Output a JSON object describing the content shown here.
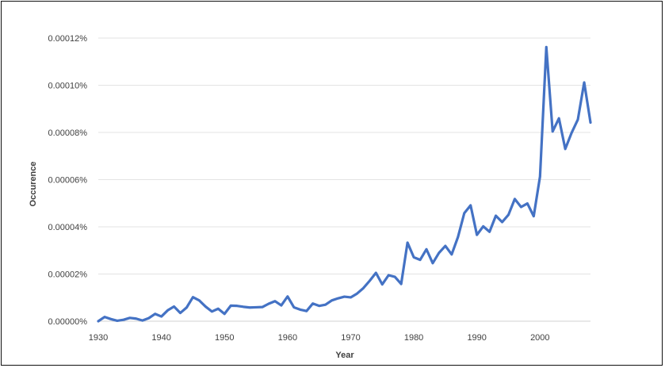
{
  "chart_data": {
    "type": "line",
    "xlabel": "Year",
    "ylabel": "Occurence",
    "xlim": [
      1930,
      2008
    ],
    "ylim": [
      0,
      0.00012
    ],
    "x_ticks": [
      1930,
      1940,
      1950,
      1960,
      1970,
      1980,
      1990,
      2000
    ],
    "y_ticks": [
      0,
      2e-05,
      4e-05,
      6e-05,
      8e-05,
      0.0001,
      0.00012
    ],
    "y_tick_labels": [
      "0.00000%",
      "0.00002%",
      "0.00004%",
      "0.00006%",
      "0.00008%",
      "0.00010%",
      "0.00012%"
    ],
    "grid": "horizontal",
    "legend": "none",
    "series_color": "#4472C4",
    "x": [
      1930,
      1931,
      1932,
      1933,
      1934,
      1935,
      1936,
      1937,
      1938,
      1939,
      1940,
      1941,
      1942,
      1943,
      1944,
      1945,
      1946,
      1947,
      1948,
      1949,
      1950,
      1951,
      1952,
      1953,
      1954,
      1955,
      1956,
      1957,
      1958,
      1959,
      1960,
      1961,
      1962,
      1963,
      1964,
      1965,
      1966,
      1967,
      1968,
      1969,
      1970,
      1971,
      1972,
      1973,
      1974,
      1975,
      1976,
      1977,
      1978,
      1979,
      1980,
      1981,
      1982,
      1983,
      1984,
      1985,
      1986,
      1987,
      1988,
      1989,
      1990,
      1991,
      1992,
      1993,
      1994,
      1995,
      1996,
      1997,
      1998,
      1999,
      2000,
      2001,
      2002,
      2003,
      2004,
      2005,
      2006,
      2007,
      2008
    ],
    "values": [
      0.0,
      1.8e-06,
      9e-07,
      2e-07,
      6e-07,
      1.4e-06,
      1.1e-06,
      3e-07,
      1.3e-06,
      3.1e-06,
      2e-06,
      4.6e-06,
      6.2e-06,
      3.5e-06,
      5.8e-06,
      1.02e-05,
      8.8e-06,
      6.2e-06,
      4.1e-06,
      5.3e-06,
      3.1e-06,
      6.6e-06,
      6.5e-06,
      6.1e-06,
      5.8e-06,
      5.9e-06,
      6e-06,
      7.4e-06,
      8.5e-06,
      6.7e-06,
      1.05e-05,
      5.9e-06,
      4.9e-06,
      4.3e-06,
      7.5e-06,
      6.5e-06,
      7e-06,
      8.8e-06,
      9.7e-06,
      1.04e-05,
      1.01e-05,
      1.17e-05,
      1.4e-05,
      1.71e-05,
      2.05e-05,
      1.56e-05,
      1.95e-05,
      1.88e-05,
      1.58e-05,
      3.33e-05,
      2.71e-05,
      2.6e-05,
      3.05e-05,
      2.46e-05,
      2.9e-05,
      3.19e-05,
      2.83e-05,
      3.57e-05,
      4.58e-05,
      4.91e-05,
      3.66e-05,
      4.02e-05,
      3.79e-05,
      4.47e-05,
      4.2e-05,
      4.51e-05,
      5.18e-05,
      4.84e-05,
      4.99e-05,
      4.45e-05,
      6.13e-05,
      0.0001162,
      8.04e-05,
      8.6e-05,
      7.3e-05,
      7.98e-05,
      8.55e-05,
      0.0001012,
      8.42e-05
    ]
  }
}
